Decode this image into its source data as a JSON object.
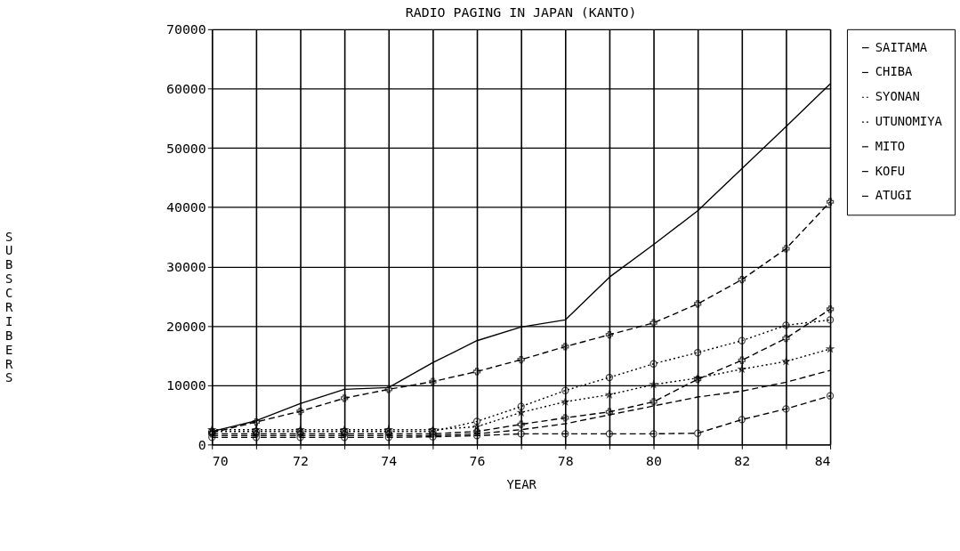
{
  "chart_data": {
    "type": "line",
    "title": "RADIO PAGING IN JAPAN (KANTO)",
    "xlabel": "YEAR",
    "ylabel": "SUBSCRIBERS",
    "x": [
      70,
      71,
      72,
      73,
      74,
      75,
      76,
      77,
      78,
      79,
      80,
      81,
      82,
      83,
      84
    ],
    "series": [
      {
        "name": "SAITAMA",
        "color": "#000000",
        "marker": "none",
        "line_style": "solid",
        "values": [
          2200,
          4000,
          6900,
          9300,
          9600,
          13800,
          17500,
          19800,
          21000,
          28200,
          33700,
          39400,
          46500,
          53600,
          60800
        ]
      },
      {
        "name": "CHIBA",
        "color": "#000000",
        "marker": "cross",
        "line_style": "dashed",
        "values": [
          2000,
          3800,
          5600,
          7800,
          9300,
          10600,
          12300,
          14300,
          16500,
          18500,
          20500,
          23700,
          27800,
          33000,
          40900
        ]
      },
      {
        "name": "SYONAN",
        "color": "#000000",
        "marker": "star",
        "line_style": "dotted",
        "values": [
          2500,
          2500,
          2500,
          2500,
          2500,
          2500,
          3000,
          5400,
          7200,
          8400,
          10100,
          11200,
          12700,
          14000,
          16100
        ]
      },
      {
        "name": "UTUNOMIYA",
        "color": "#000000",
        "marker": "circle",
        "line_style": "dotted",
        "values": [
          2200,
          2200,
          2200,
          2200,
          2200,
          2200,
          3900,
          6400,
          9100,
          11300,
          13600,
          15500,
          17500,
          20100,
          21000
        ]
      },
      {
        "name": "MITO",
        "color": "#000000",
        "marker": "cross",
        "line_style": "dashed",
        "values": [
          1800,
          1800,
          1800,
          1800,
          1800,
          1800,
          2200,
          3400,
          4500,
          5500,
          7200,
          11000,
          14200,
          17900,
          22800
        ]
      },
      {
        "name": "KOFU",
        "color": "#000000",
        "marker": "none",
        "line_style": "dashed",
        "values": [
          1500,
          1500,
          1500,
          1500,
          1500,
          1500,
          1800,
          2500,
          3500,
          5000,
          6500,
          8000,
          9000,
          10500,
          12500
        ]
      },
      {
        "name": "ATUGI",
        "color": "#000000",
        "marker": "circle",
        "line_style": "dashed",
        "values": [
          1200,
          1200,
          1200,
          1200,
          1200,
          1300,
          1500,
          1800,
          1800,
          1800,
          1800,
          1900,
          4200,
          6000,
          8200
        ]
      }
    ],
    "xlim": [
      70,
      84
    ],
    "xticks": [
      70,
      {
        "value": 71,
        "label": null
      },
      72,
      {
        "value": 73,
        "label": null
      },
      74,
      {
        "value": 75,
        "label": null
      },
      76,
      {
        "value": 77,
        "label": null
      },
      78,
      {
        "value": 79,
        "label": null
      },
      80,
      {
        "value": 81,
        "label": null
      },
      82,
      {
        "value": 83,
        "label": null
      },
      84
    ],
    "ylim": [
      0,
      70000
    ],
    "yticks": [
      0,
      10000,
      20000,
      30000,
      40000,
      50000,
      60000,
      70000
    ],
    "grid": true,
    "legend": "right"
  }
}
